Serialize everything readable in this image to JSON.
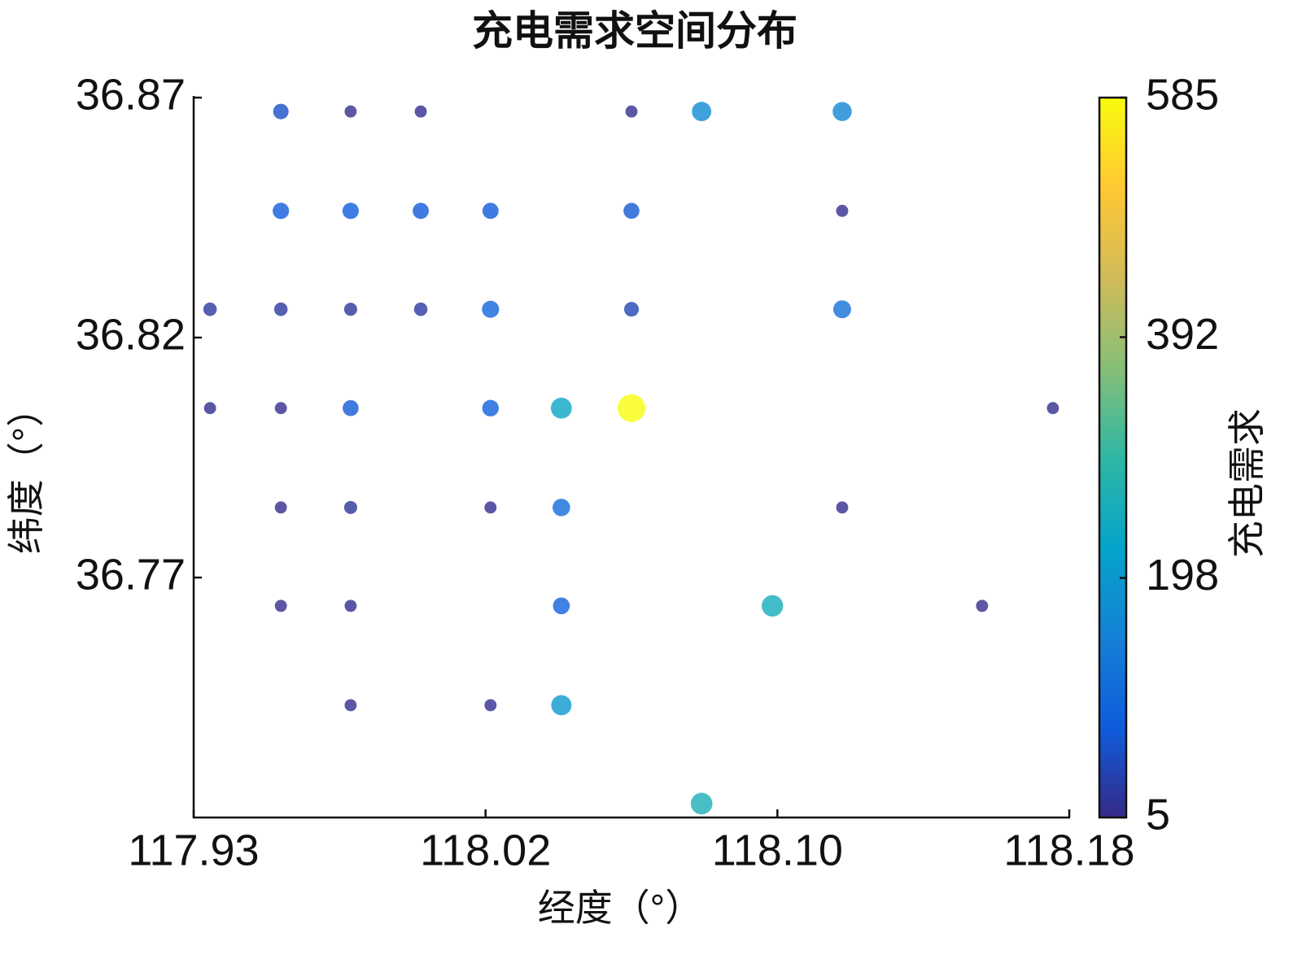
{
  "chart_data": {
    "type": "scatter",
    "title": "充电需求空间分布",
    "xlabel": "经度（°）",
    "ylabel": "纬度（°）",
    "x": [
      117.9585,
      117.9781,
      117.9978,
      118.057,
      118.0767,
      118.1162,
      117.9585,
      117.9781,
      117.9978,
      118.0174,
      118.057,
      118.1162,
      117.9386,
      117.9585,
      117.9781,
      117.9978,
      118.0174,
      118.057,
      118.1162,
      117.9386,
      117.9585,
      117.9781,
      118.0174,
      118.0373,
      118.057,
      118.1754,
      117.9585,
      117.9781,
      118.0174,
      118.0373,
      118.1162,
      117.9585,
      117.9781,
      118.0373,
      118.0966,
      118.1555,
      117.9781,
      118.0174,
      118.0373,
      118.0767
    ],
    "y": [
      36.8671,
      36.8671,
      36.8671,
      36.8671,
      36.8671,
      36.8671,
      36.8464,
      36.8464,
      36.8464,
      36.8464,
      36.8464,
      36.8464,
      36.8259,
      36.8259,
      36.8259,
      36.8259,
      36.8259,
      36.8259,
      36.8259,
      36.8053,
      36.8053,
      36.8053,
      36.8053,
      36.8053,
      36.8053,
      36.8053,
      36.7846,
      36.7846,
      36.7846,
      36.7846,
      36.7846,
      36.7641,
      36.7641,
      36.7641,
      36.7641,
      36.7641,
      36.7434,
      36.7434,
      36.7434,
      36.7229
    ],
    "values": [
      60,
      10,
      10,
      10,
      170,
      160,
      80,
      80,
      75,
      75,
      70,
      10,
      25,
      25,
      20,
      25,
      100,
      45,
      120,
      10,
      10,
      70,
      85,
      230,
      585,
      10,
      10,
      20,
      10,
      110,
      10,
      10,
      10,
      90,
      250,
      10,
      10,
      10,
      200,
      260
    ],
    "xlim": [
      117.934,
      118.18
    ],
    "ylim": [
      36.72,
      36.87
    ],
    "xticks": [
      {
        "value": 117.934,
        "label": "117.93"
      },
      {
        "value": 118.016,
        "label": "118.02"
      },
      {
        "value": 118.098,
        "label": "118.10"
      },
      {
        "value": 118.18,
        "label": "118.18"
      }
    ],
    "yticks": [
      36.87,
      36.82,
      36.77
    ],
    "colorbar": {
      "label": "充电需求",
      "lim": [
        5,
        585
      ],
      "ticks": [
        5,
        198,
        392,
        585
      ]
    },
    "colormap": [
      "#352a87",
      "#0f5cdd",
      "#1481d6",
      "#06a4ca",
      "#2eb7a4",
      "#87bf77",
      "#d1bb59",
      "#fec832",
      "#f9fb0e"
    ],
    "marker_opacity": 0.8
  }
}
